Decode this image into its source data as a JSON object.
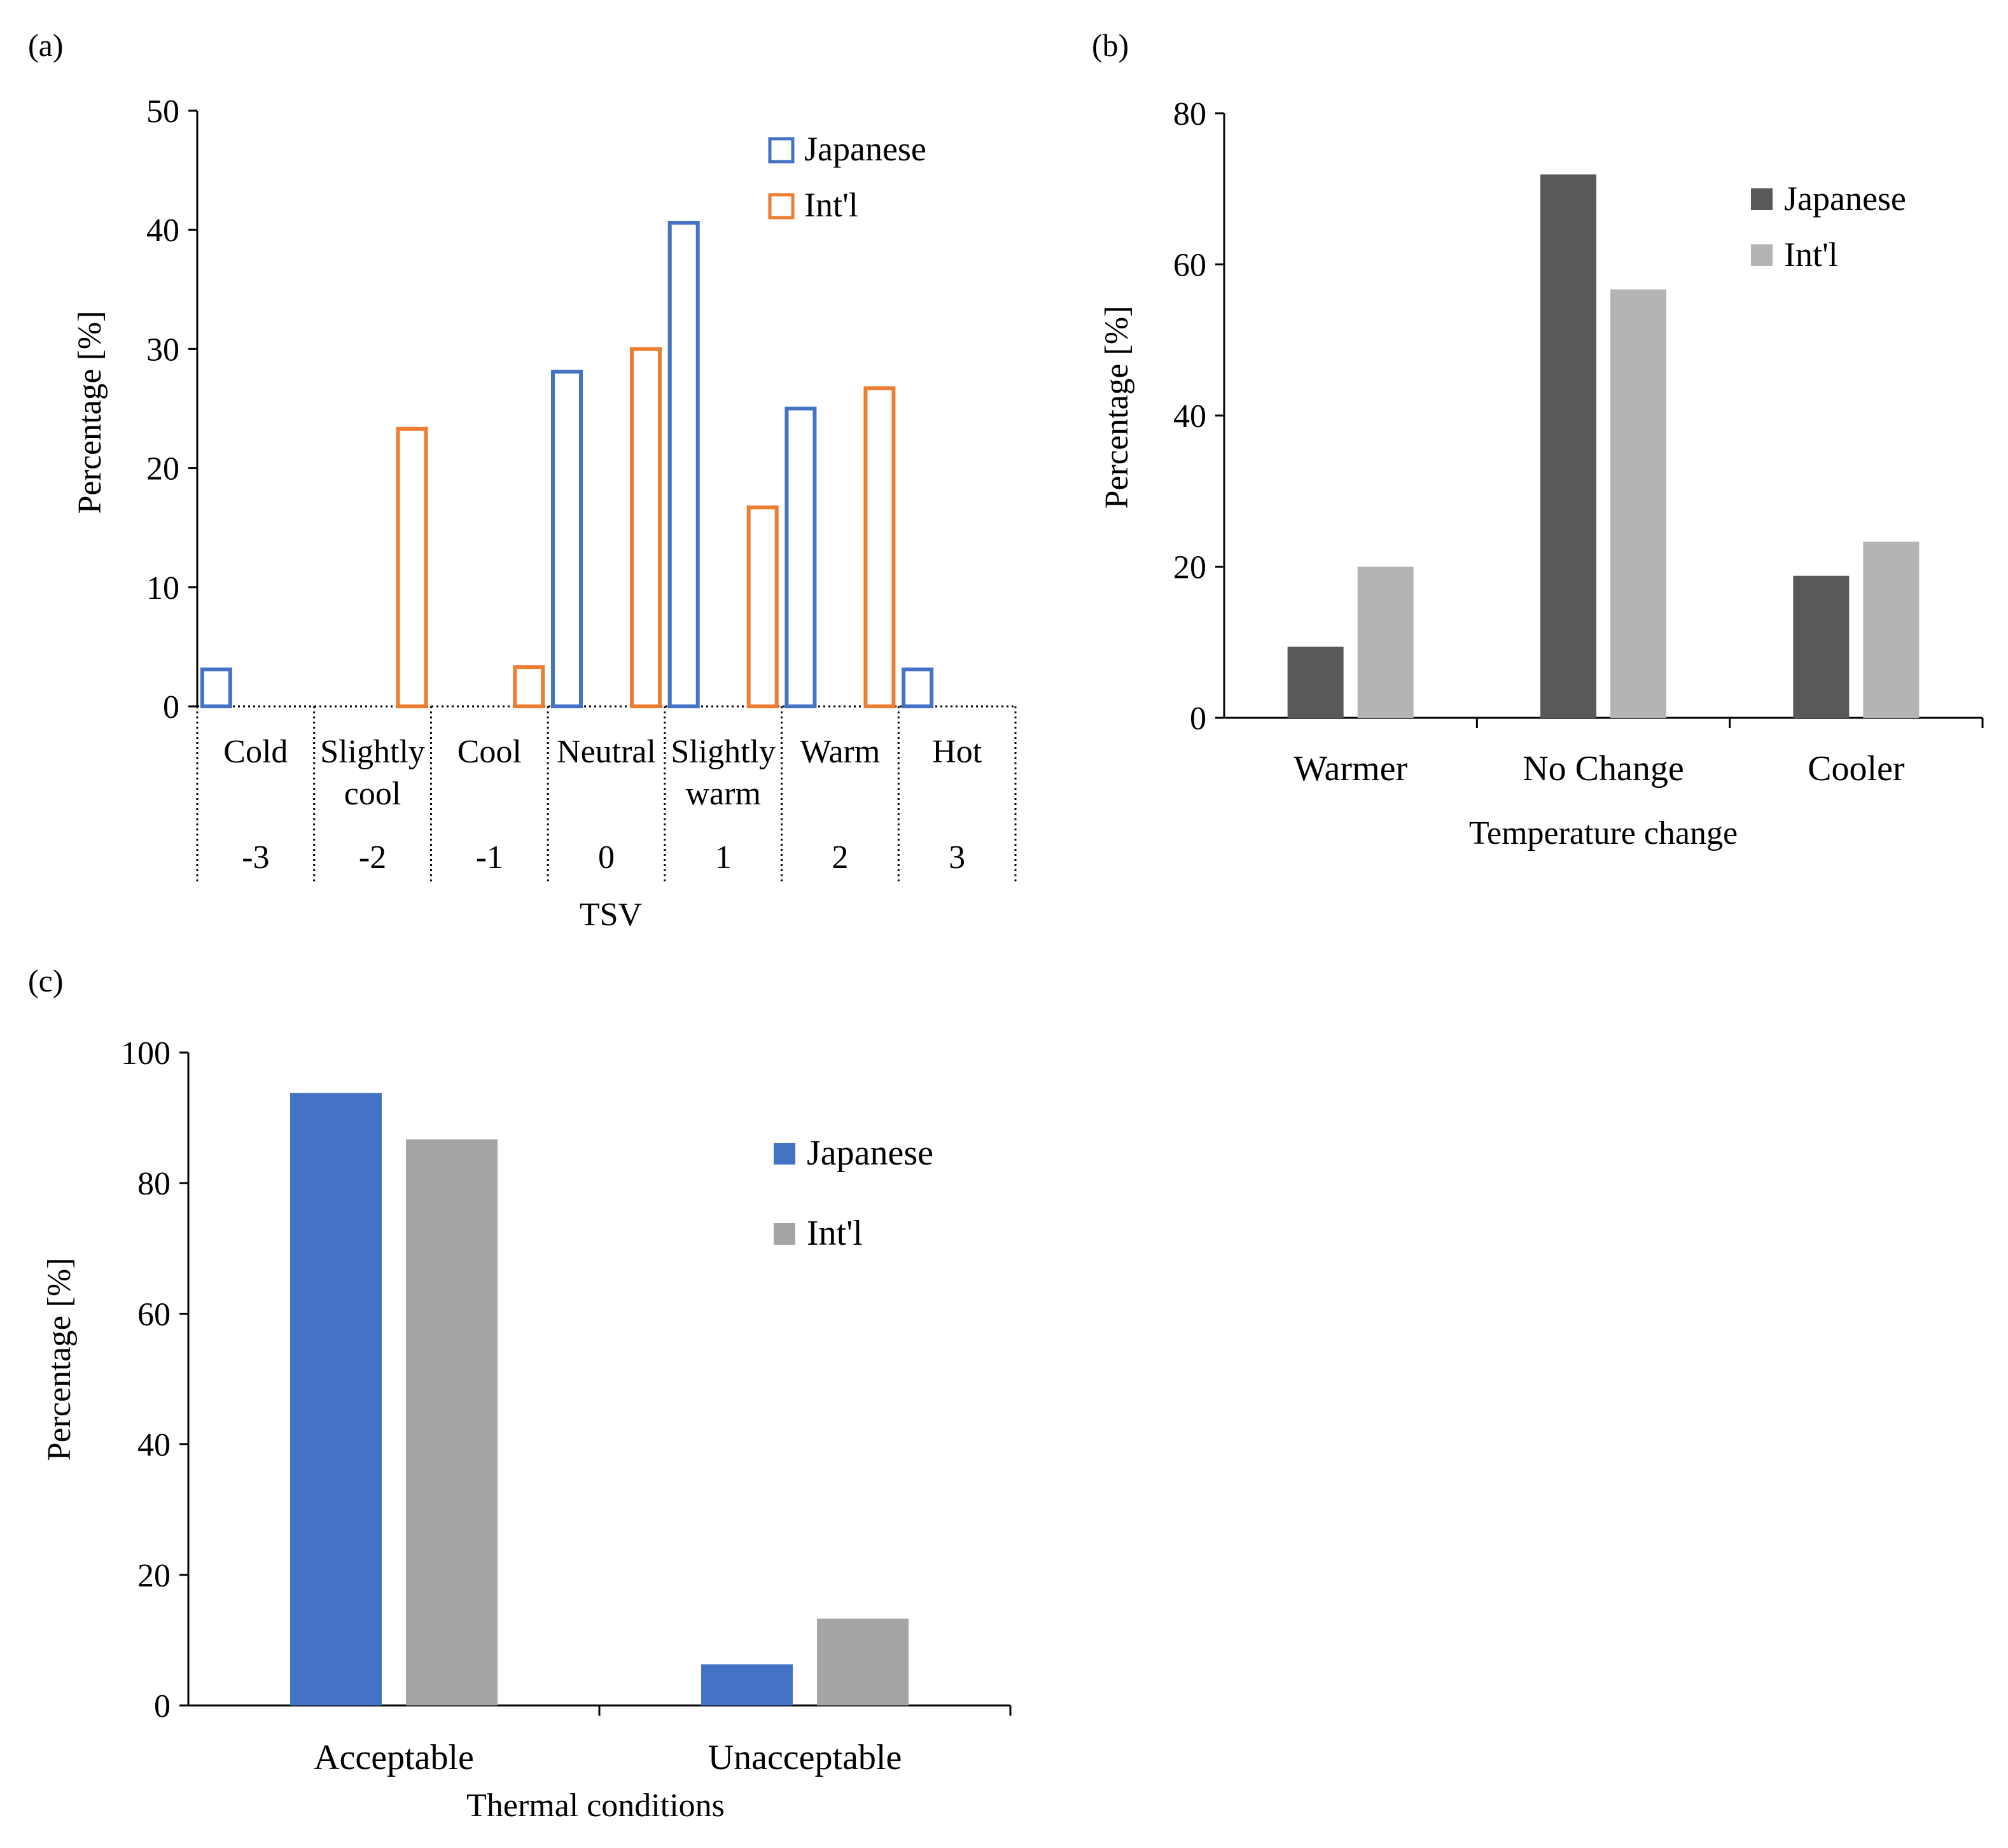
{
  "chart_data": [
    {
      "panel_label": "(a)",
      "type": "bar",
      "style": "outline",
      "categories": [
        "Cold",
        "Slightly cool",
        "Cool",
        "Neutral",
        "Slightly warm",
        "Warm",
        "Hot"
      ],
      "category_lines": [
        [
          "Cold"
        ],
        [
          "Slightly",
          "cool"
        ],
        [
          "Cool"
        ],
        [
          "Neutral"
        ],
        [
          "Slightly",
          "warm"
        ],
        [
          "Warm"
        ],
        [
          "Hot"
        ]
      ],
      "tsv_values": [
        "-3",
        "-2",
        "-1",
        "0",
        "1",
        "2",
        "3"
      ],
      "series": [
        {
          "name": "Japanese",
          "color": "#4472C4",
          "values": [
            3.1,
            0,
            0,
            28.1,
            40.6,
            25.0,
            3.1
          ]
        },
        {
          "name": "Int'l",
          "color": "#ED7D31",
          "values": [
            0,
            23.3,
            3.3,
            30.0,
            16.7,
            26.7,
            0
          ]
        }
      ],
      "xlabel": "TSV",
      "ylabel": "Percentage  [%]",
      "ylim": [
        0,
        50
      ],
      "yticks": [
        0,
        10,
        20,
        30,
        40,
        50
      ],
      "legend_position": "top-right"
    },
    {
      "panel_label": "(b)",
      "type": "bar",
      "style": "filled",
      "categories": [
        "Warmer",
        "No Change",
        "Cooler"
      ],
      "series": [
        {
          "name": "Japanese",
          "color": "#595959",
          "values": [
            9.4,
            71.9,
            18.8
          ]
        },
        {
          "name": "Int'l",
          "color": "#B4B4B4",
          "values": [
            20.0,
            56.7,
            23.3
          ]
        }
      ],
      "xlabel": "Temperature change",
      "ylabel": "Percentage  [%]",
      "ylim": [
        0,
        80
      ],
      "yticks": [
        0,
        20,
        40,
        60,
        80
      ],
      "legend_position": "top-right"
    },
    {
      "panel_label": "(c)",
      "type": "bar",
      "style": "filled",
      "categories": [
        "Acceptable",
        "Unacceptable"
      ],
      "series": [
        {
          "name": "Japanese",
          "color": "#4472C4",
          "values": [
            93.8,
            6.3
          ]
        },
        {
          "name": "Int'l",
          "color": "#A5A5A5",
          "values": [
            86.7,
            13.3
          ]
        }
      ],
      "xlabel": "Thermal conditions",
      "ylabel": "Percentage  [%]",
      "ylim": [
        0,
        100
      ],
      "yticks": [
        0,
        20,
        40,
        60,
        80,
        100
      ],
      "legend_position": "top-right"
    }
  ]
}
